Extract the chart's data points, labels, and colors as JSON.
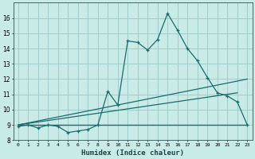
{
  "xlabel": "Humidex (Indice chaleur)",
  "background_color": "#c8ebe8",
  "grid_color": "#a0cccc",
  "line_color": "#1a6b6b",
  "xlim": [
    -0.5,
    23.5
  ],
  "ylim": [
    8,
    17
  ],
  "yticks": [
    8,
    9,
    10,
    11,
    12,
    13,
    14,
    15,
    16
  ],
  "xticks": [
    0,
    1,
    2,
    3,
    4,
    5,
    6,
    7,
    8,
    9,
    10,
    11,
    12,
    13,
    14,
    15,
    16,
    17,
    18,
    19,
    20,
    21,
    22,
    23
  ],
  "series1_x": [
    0,
    1,
    2,
    3,
    4,
    5,
    6,
    7,
    8,
    9,
    10,
    11,
    12,
    13,
    14,
    15,
    16,
    17,
    18,
    19,
    20,
    21,
    22,
    23
  ],
  "series1_y": [
    8.9,
    9.0,
    8.8,
    9.0,
    8.9,
    8.5,
    8.6,
    8.7,
    9.0,
    11.2,
    10.3,
    14.5,
    14.4,
    13.9,
    14.6,
    16.3,
    15.2,
    14.0,
    13.2,
    12.1,
    11.1,
    10.9,
    10.5,
    9.0
  ],
  "series2_x": [
    0,
    23
  ],
  "series2_y": [
    9.0,
    9.0
  ],
  "series3_x": [
    0,
    23
  ],
  "series3_y": [
    9.0,
    12.0
  ],
  "series4_x": [
    0,
    22
  ],
  "series4_y": [
    9.0,
    11.1
  ]
}
